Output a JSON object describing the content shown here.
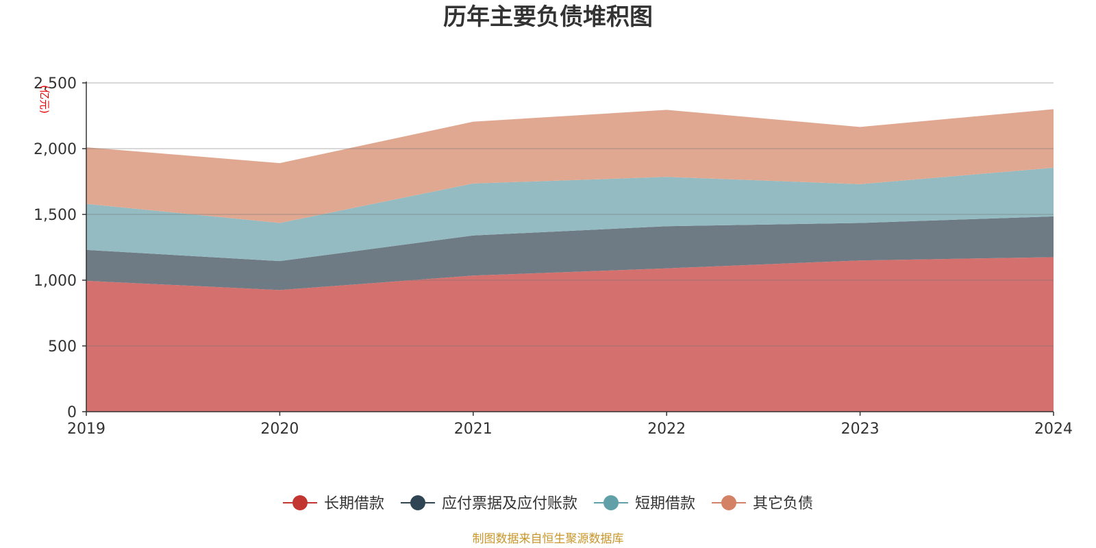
{
  "chart_data": {
    "type": "area",
    "stacked": true,
    "title": "历年主要负债堆积图",
    "unit_label": "(亿元)",
    "x": [
      "2019",
      "2020",
      "2021",
      "2022",
      "2023",
      "2024"
    ],
    "ylim": [
      0,
      2500
    ],
    "yticks": [
      "0",
      "500",
      "1,000",
      "1,500",
      "2,000",
      "2,500"
    ],
    "ytick_values": [
      0,
      500,
      1000,
      1500,
      2000,
      2500
    ],
    "grid": true,
    "legend_position": "bottom",
    "series": [
      {
        "name": "长期借款",
        "values": [
          995,
          925,
          1035,
          1090,
          1150,
          1175
        ],
        "color": "#c23531",
        "fill": "#d4706d"
      },
      {
        "name": "应付票据及应付账款",
        "values": [
          235,
          220,
          305,
          320,
          285,
          310
        ],
        "color": "#2f4554",
        "fill": "#6e7b85"
      },
      {
        "name": "短期借款",
        "values": [
          350,
          290,
          395,
          375,
          295,
          370
        ],
        "color": "#61a0a8",
        "fill": "#93bbc1"
      },
      {
        "name": "其它负债",
        "values": [
          430,
          455,
          470,
          510,
          435,
          445
        ],
        "color": "#d48265",
        "fill": "#e0a891"
      }
    ],
    "source": "制图数据来自恒生聚源数据库"
  }
}
